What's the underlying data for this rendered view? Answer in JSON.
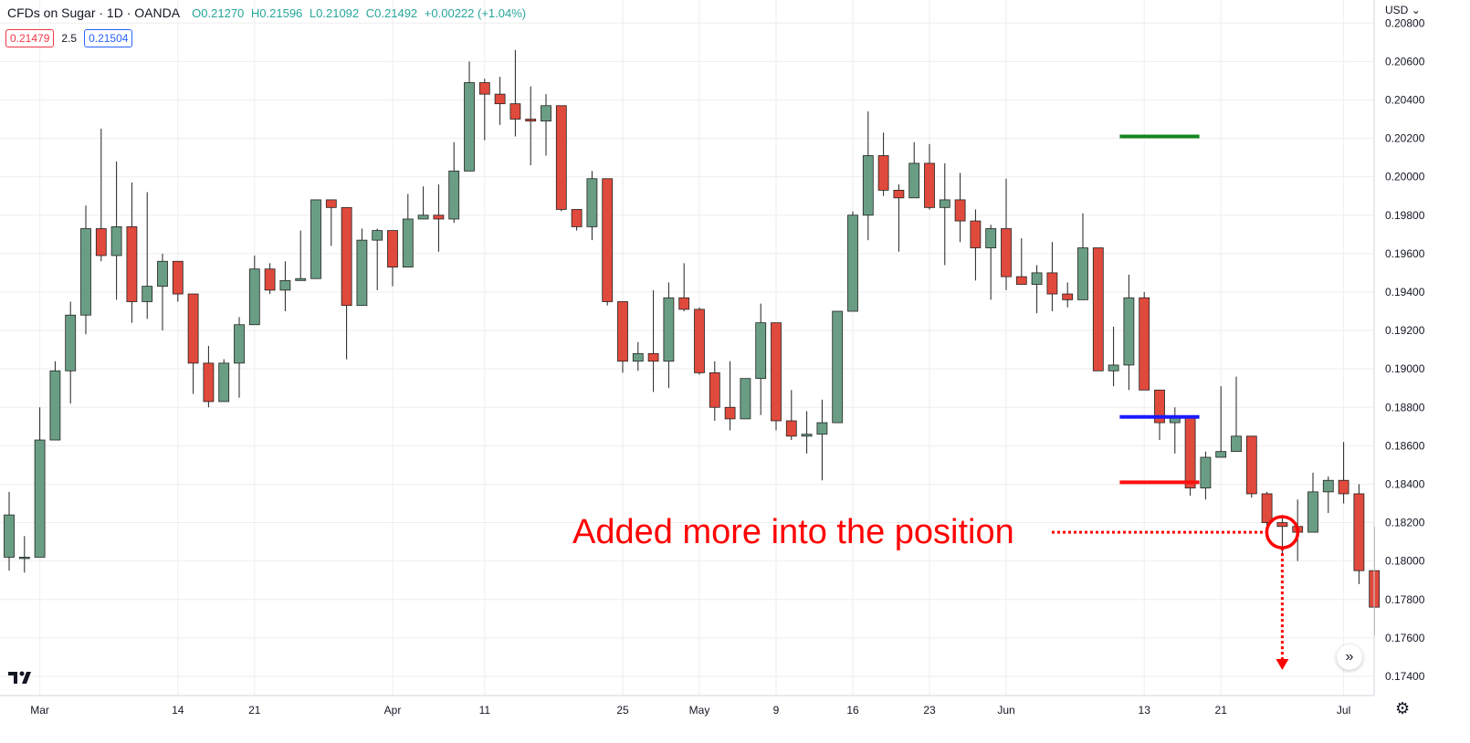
{
  "header": {
    "symbol": "CFDs on Sugar · 1D · OANDA",
    "ohlc": {
      "open": "O0.21270",
      "high": "H0.21596",
      "low": "L0.21092",
      "close": "C0.21492",
      "change": "+0.00222 (+1.04%)"
    }
  },
  "quote": {
    "sell": "0.21479",
    "spread": "2.5",
    "buy": "0.21504"
  },
  "currency_label": "USD",
  "colors": {
    "up": "#6a9e84",
    "down": "#e04a3c",
    "grid": "#eeeeee",
    "target_line": "#14861e",
    "entry_line": "#1a1aff",
    "stop_line": "#ff1010",
    "annotation": "#ff0000"
  },
  "icons": {
    "scroll_forward": "chevrons-right-icon",
    "settings": "gear-icon",
    "logo": "tradingview-logo"
  },
  "chart_data": {
    "type": "candlestick",
    "y_axis": {
      "min": 0.173,
      "max": 0.2092,
      "ticks": [
        "0.20800",
        "0.20600",
        "0.20400",
        "0.20200",
        "0.20000",
        "0.19800",
        "0.19600",
        "0.19400",
        "0.19200",
        "0.19000",
        "0.18800",
        "0.18600",
        "0.18400",
        "0.18200",
        "0.18000",
        "0.17800",
        "0.17600",
        "0.17400"
      ]
    },
    "x_axis": {
      "labels": [
        {
          "label": "Mar",
          "index": 2
        },
        {
          "label": "14",
          "index": 11
        },
        {
          "label": "21",
          "index": 16
        },
        {
          "label": "Apr",
          "index": 25
        },
        {
          "label": "11",
          "index": 31
        },
        {
          "label": "25",
          "index": 40
        },
        {
          "label": "May",
          "index": 45
        },
        {
          "label": "9",
          "index": 50
        },
        {
          "label": "16",
          "index": 55
        },
        {
          "label": "23",
          "index": 60
        },
        {
          "label": "Jun",
          "index": 65
        },
        {
          "label": "13",
          "index": 74
        },
        {
          "label": "21",
          "index": 79
        },
        {
          "label": "Jul",
          "index": 87
        }
      ]
    },
    "candles": [
      {
        "o": 0.1802,
        "h": 0.1836,
        "l": 0.1795,
        "c": 0.1824
      },
      {
        "o": 0.1802,
        "h": 0.1813,
        "l": 0.1794,
        "c": 0.1802
      },
      {
        "o": 0.1802,
        "h": 0.188,
        "l": 0.1802,
        "c": 0.1863
      },
      {
        "o": 0.1863,
        "h": 0.1904,
        "l": 0.1863,
        "c": 0.1899
      },
      {
        "o": 0.1899,
        "h": 0.1935,
        "l": 0.1882,
        "c": 0.1928
      },
      {
        "o": 0.1928,
        "h": 0.1985,
        "l": 0.1918,
        "c": 0.1973
      },
      {
        "o": 0.1973,
        "h": 0.2025,
        "l": 0.1956,
        "c": 0.1959
      },
      {
        "o": 0.1959,
        "h": 0.2008,
        "l": 0.1936,
        "c": 0.1974
      },
      {
        "o": 0.1974,
        "h": 0.1997,
        "l": 0.1924,
        "c": 0.1935
      },
      {
        "o": 0.1935,
        "h": 0.1992,
        "l": 0.1926,
        "c": 0.1943
      },
      {
        "o": 0.1943,
        "h": 0.196,
        "l": 0.192,
        "c": 0.1956
      },
      {
        "o": 0.1956,
        "h": 0.1956,
        "l": 0.1935,
        "c": 0.1939
      },
      {
        "o": 0.1939,
        "h": 0.1939,
        "l": 0.1887,
        "c": 0.1903
      },
      {
        "o": 0.1903,
        "h": 0.1912,
        "l": 0.188,
        "c": 0.1883
      },
      {
        "o": 0.1883,
        "h": 0.1905,
        "l": 0.1883,
        "c": 0.1903
      },
      {
        "o": 0.1903,
        "h": 0.1927,
        "l": 0.1885,
        "c": 0.1923
      },
      {
        "o": 0.1923,
        "h": 0.1959,
        "l": 0.1923,
        "c": 0.1952
      },
      {
        "o": 0.1952,
        "h": 0.1955,
        "l": 0.1939,
        "c": 0.1941
      },
      {
        "o": 0.1941,
        "h": 0.1956,
        "l": 0.193,
        "c": 0.1946
      },
      {
        "o": 0.1946,
        "h": 0.1972,
        "l": 0.1946,
        "c": 0.1947
      },
      {
        "o": 0.1947,
        "h": 0.1988,
        "l": 0.1947,
        "c": 0.1988
      },
      {
        "o": 0.1988,
        "h": 0.1988,
        "l": 0.1964,
        "c": 0.1984
      },
      {
        "o": 0.1984,
        "h": 0.1984,
        "l": 0.1905,
        "c": 0.1933
      },
      {
        "o": 0.1933,
        "h": 0.1973,
        "l": 0.1933,
        "c": 0.1967
      },
      {
        "o": 0.1967,
        "h": 0.1973,
        "l": 0.1941,
        "c": 0.1972
      },
      {
        "o": 0.1972,
        "h": 0.1972,
        "l": 0.1943,
        "c": 0.1953
      },
      {
        "o": 0.1953,
        "h": 0.1991,
        "l": 0.1953,
        "c": 0.1978
      },
      {
        "o": 0.1978,
        "h": 0.1995,
        "l": 0.1978,
        "c": 0.198
      },
      {
        "o": 0.198,
        "h": 0.1996,
        "l": 0.1961,
        "c": 0.1978
      },
      {
        "o": 0.1978,
        "h": 0.2018,
        "l": 0.1976,
        "c": 0.2003
      },
      {
        "o": 0.2003,
        "h": 0.206,
        "l": 0.2003,
        "c": 0.2049
      },
      {
        "o": 0.2049,
        "h": 0.2051,
        "l": 0.2019,
        "c": 0.2043
      },
      {
        "o": 0.2043,
        "h": 0.2052,
        "l": 0.2027,
        "c": 0.2038
      },
      {
        "o": 0.2038,
        "h": 0.2066,
        "l": 0.2021,
        "c": 0.203
      },
      {
        "o": 0.203,
        "h": 0.2047,
        "l": 0.2006,
        "c": 0.2029
      },
      {
        "o": 0.2029,
        "h": 0.2043,
        "l": 0.2011,
        "c": 0.2037
      },
      {
        "o": 0.2037,
        "h": 0.2037,
        "l": 0.1982,
        "c": 0.1983
      },
      {
        "o": 0.1983,
        "h": 0.1983,
        "l": 0.1972,
        "c": 0.1974
      },
      {
        "o": 0.1974,
        "h": 0.2003,
        "l": 0.1967,
        "c": 0.1999
      },
      {
        "o": 0.1999,
        "h": 0.1999,
        "l": 0.1933,
        "c": 0.1935
      },
      {
        "o": 0.1935,
        "h": 0.1935,
        "l": 0.1898,
        "c": 0.1904
      },
      {
        "o": 0.1904,
        "h": 0.1914,
        "l": 0.1899,
        "c": 0.1908
      },
      {
        "o": 0.1908,
        "h": 0.1941,
        "l": 0.1888,
        "c": 0.1904
      },
      {
        "o": 0.1904,
        "h": 0.1945,
        "l": 0.189,
        "c": 0.1937
      },
      {
        "o": 0.1937,
        "h": 0.1955,
        "l": 0.193,
        "c": 0.1931
      },
      {
        "o": 0.1931,
        "h": 0.1932,
        "l": 0.1897,
        "c": 0.1898
      },
      {
        "o": 0.1898,
        "h": 0.1904,
        "l": 0.1873,
        "c": 0.188
      },
      {
        "o": 0.188,
        "h": 0.1904,
        "l": 0.1868,
        "c": 0.1874
      },
      {
        "o": 0.1874,
        "h": 0.1895,
        "l": 0.1874,
        "c": 0.1895
      },
      {
        "o": 0.1895,
        "h": 0.1934,
        "l": 0.1876,
        "c": 0.1924
      },
      {
        "o": 0.1924,
        "h": 0.1924,
        "l": 0.1868,
        "c": 0.1873
      },
      {
        "o": 0.1873,
        "h": 0.1889,
        "l": 0.1863,
        "c": 0.1865
      },
      {
        "o": 0.1865,
        "h": 0.1878,
        "l": 0.1856,
        "c": 0.1866
      },
      {
        "o": 0.1866,
        "h": 0.1884,
        "l": 0.1842,
        "c": 0.1872
      },
      {
        "o": 0.1872,
        "h": 0.193,
        "l": 0.1872,
        "c": 0.193
      },
      {
        "o": 0.193,
        "h": 0.1982,
        "l": 0.193,
        "c": 0.198
      },
      {
        "o": 0.198,
        "h": 0.2034,
        "l": 0.1967,
        "c": 0.2011
      },
      {
        "o": 0.2011,
        "h": 0.2023,
        "l": 0.199,
        "c": 0.1993
      },
      {
        "o": 0.1993,
        "h": 0.1996,
        "l": 0.1961,
        "c": 0.1989
      },
      {
        "o": 0.1989,
        "h": 0.2018,
        "l": 0.1989,
        "c": 0.2007
      },
      {
        "o": 0.2007,
        "h": 0.2017,
        "l": 0.1983,
        "c": 0.1984
      },
      {
        "o": 0.1984,
        "h": 0.2007,
        "l": 0.1954,
        "c": 0.1988
      },
      {
        "o": 0.1988,
        "h": 0.2002,
        "l": 0.1966,
        "c": 0.1977
      },
      {
        "o": 0.1977,
        "h": 0.1983,
        "l": 0.1946,
        "c": 0.1963
      },
      {
        "o": 0.1963,
        "h": 0.1975,
        "l": 0.1936,
        "c": 0.1973
      },
      {
        "o": 0.1973,
        "h": 0.1999,
        "l": 0.1941,
        "c": 0.1948
      },
      {
        "o": 0.1948,
        "h": 0.1968,
        "l": 0.1944,
        "c": 0.1944
      },
      {
        "o": 0.1944,
        "h": 0.1954,
        "l": 0.1929,
        "c": 0.195
      },
      {
        "o": 0.195,
        "h": 0.1966,
        "l": 0.193,
        "c": 0.1939
      },
      {
        "o": 0.1939,
        "h": 0.1945,
        "l": 0.1932,
        "c": 0.1936
      },
      {
        "o": 0.1936,
        "h": 0.1981,
        "l": 0.1936,
        "c": 0.1963
      },
      {
        "o": 0.1963,
        "h": 0.1963,
        "l": 0.1899,
        "c": 0.1899
      },
      {
        "o": 0.1899,
        "h": 0.1922,
        "l": 0.1891,
        "c": 0.1902
      },
      {
        "o": 0.1902,
        "h": 0.1949,
        "l": 0.1889,
        "c": 0.1937
      },
      {
        "o": 0.1937,
        "h": 0.194,
        "l": 0.1889,
        "c": 0.1889
      },
      {
        "o": 0.1889,
        "h": 0.1889,
        "l": 0.1863,
        "c": 0.1872
      },
      {
        "o": 0.1872,
        "h": 0.188,
        "l": 0.1856,
        "c": 0.1875
      },
      {
        "o": 0.1875,
        "h": 0.1875,
        "l": 0.1834,
        "c": 0.1838
      },
      {
        "o": 0.1838,
        "h": 0.1857,
        "l": 0.1832,
        "c": 0.1854
      },
      {
        "o": 0.1854,
        "h": 0.1891,
        "l": 0.1854,
        "c": 0.1857
      },
      {
        "o": 0.1857,
        "h": 0.1896,
        "l": 0.1857,
        "c": 0.1865
      },
      {
        "o": 0.1865,
        "h": 0.1865,
        "l": 0.1833,
        "c": 0.1835
      },
      {
        "o": 0.1835,
        "h": 0.1836,
        "l": 0.1816,
        "c": 0.182
      },
      {
        "o": 0.182,
        "h": 0.1824,
        "l": 0.1804,
        "c": 0.1818
      },
      {
        "o": 0.1818,
        "h": 0.1832,
        "l": 0.18,
        "c": 0.1815
      },
      {
        "o": 0.1815,
        "h": 0.1846,
        "l": 0.1815,
        "c": 0.1836
      },
      {
        "o": 0.1836,
        "h": 0.1844,
        "l": 0.1825,
        "c": 0.1842
      },
      {
        "o": 0.1842,
        "h": 0.1862,
        "l": 0.183,
        "c": 0.1835
      },
      {
        "o": 0.1835,
        "h": 0.184,
        "l": 0.1788,
        "c": 0.1795
      },
      {
        "o": 0.1795,
        "h": 0.1818,
        "l": 0.1761,
        "c": 0.1776
      }
    ],
    "levels": [
      {
        "name": "target",
        "price": 0.2021,
        "from_index": 73,
        "to_index": 77,
        "color": "#14861e"
      },
      {
        "name": "entry",
        "price": 0.1875,
        "from_index": 73,
        "to_index": 77,
        "color": "#1a1aff"
      },
      {
        "name": "stop",
        "price": 0.1841,
        "from_index": 73,
        "to_index": 77,
        "color": "#ff1010"
      }
    ],
    "annotation": {
      "text": "Added more into the position",
      "target_index": 83,
      "target_price": 0.1815
    }
  }
}
